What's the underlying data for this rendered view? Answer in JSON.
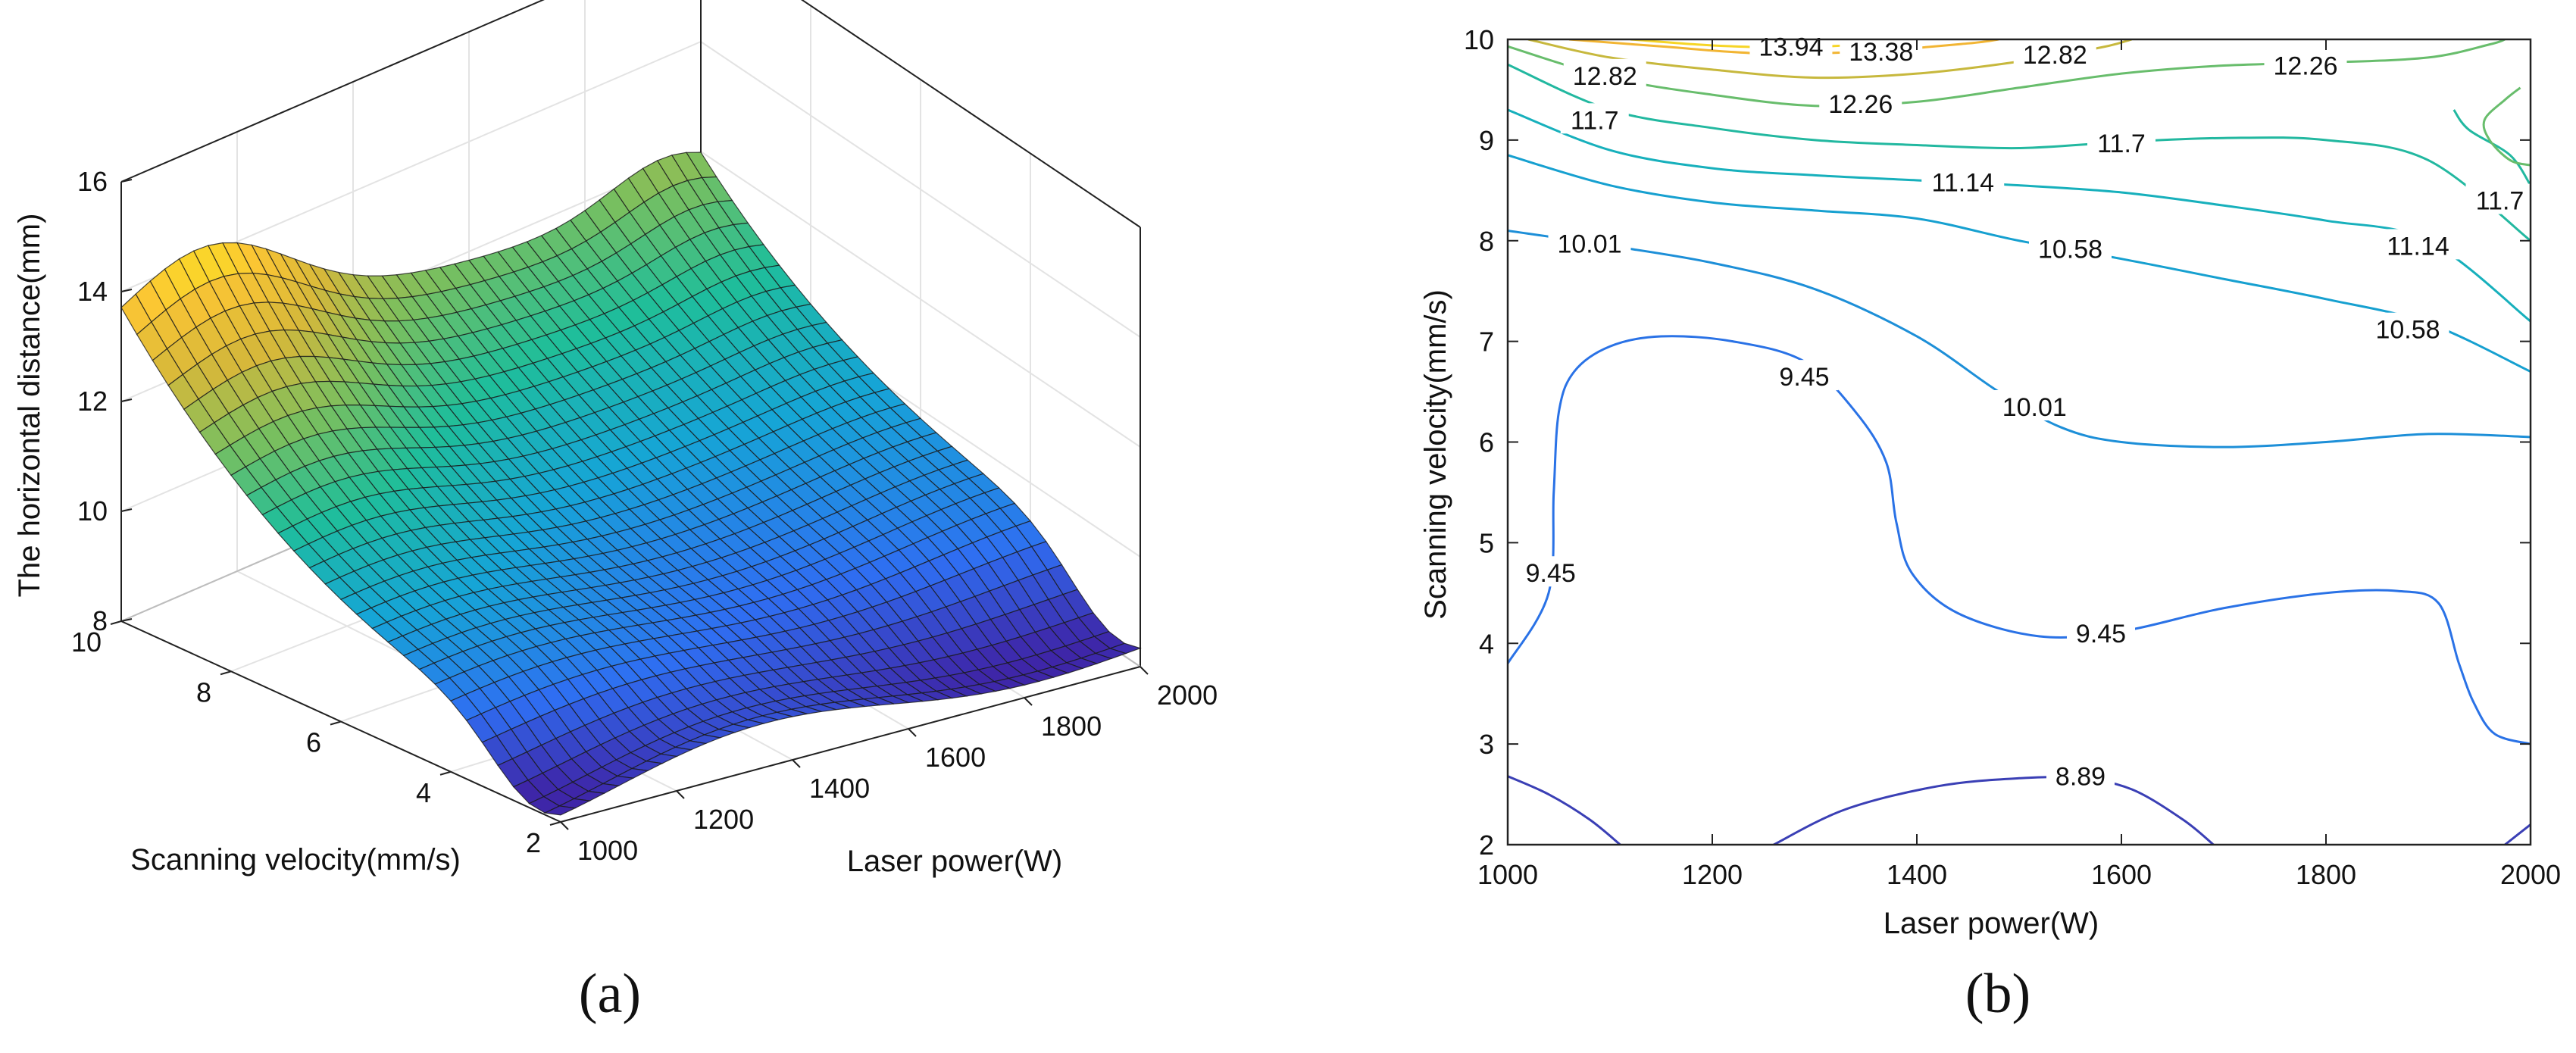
{
  "chart_data": [
    {
      "panel": "a",
      "type": "surface",
      "caption": "(a)",
      "zlabel": "The horizontal distance(mm)",
      "xlabel": "Laser power(W)",
      "ylabel": "Scanning velocity(mm/s)",
      "xlim": [
        1000,
        2000
      ],
      "ylim": [
        2,
        10
      ],
      "zlim": [
        8,
        16
      ],
      "xticks": [
        "1000",
        "1200",
        "1400",
        "1600",
        "1800",
        "2000"
      ],
      "yticks": [
        "2",
        "4",
        "6",
        "8",
        "10"
      ],
      "zticks": [
        "8",
        "10",
        "12",
        "14",
        "16"
      ],
      "colormap": [
        "#3e26a8",
        "#2f6ef2",
        "#16a5d6",
        "#1fbe9a",
        "#79bf5f",
        "#d6b83a",
        "#fbc534",
        "#f9fb15"
      ]
    },
    {
      "panel": "b",
      "type": "contour",
      "caption": "(b)",
      "xlabel": "Laser power(W)",
      "ylabel": "Scanning velocity(mm/s)",
      "xlim": [
        1000,
        2000
      ],
      "ylim": [
        2,
        10
      ],
      "xticks": [
        "1000",
        "1200",
        "1400",
        "1600",
        "1800",
        "2000"
      ],
      "yticks": [
        "2",
        "3",
        "4",
        "5",
        "6",
        "7",
        "8",
        "9",
        "10"
      ],
      "levels": [
        {
          "value": "8.89",
          "color": "#3a3fb5",
          "lines": [
            [
              [
                1000,
                2.68
              ],
              [
                1040,
                2.5
              ],
              [
                1080,
                2.25
              ],
              [
                1110,
                2.0
              ]
            ],
            [
              [
                1260,
                2.0
              ],
              [
                1330,
                2.35
              ],
              [
                1420,
                2.58
              ],
              [
                1500,
                2.66
              ],
              [
                1560,
                2.66
              ],
              [
                1610,
                2.55
              ],
              [
                1660,
                2.25
              ],
              [
                1690,
                2.0
              ]
            ],
            [
              [
                1975,
                2.0
              ],
              [
                2000,
                2.2
              ]
            ]
          ],
          "labels": [
            [
              1560,
              2.68
            ]
          ]
        },
        {
          "value": "9.45",
          "color": "#2a72e6",
          "lines": [
            [
              [
                1000,
                3.8
              ],
              [
                1040,
                4.5
              ],
              [
                1045,
                5.5
              ],
              [
                1050,
                6.3
              ],
              [
                1065,
                6.7
              ],
              [
                1100,
                6.95
              ],
              [
                1150,
                7.05
              ],
              [
                1220,
                7.0
              ],
              [
                1290,
                6.8
              ],
              [
                1340,
                6.3
              ],
              [
                1370,
                5.8
              ],
              [
                1380,
                5.2
              ],
              [
                1395,
                4.7
              ],
              [
                1440,
                4.3
              ],
              [
                1520,
                4.07
              ],
              [
                1600,
                4.12
              ],
              [
                1700,
                4.35
              ],
              [
                1800,
                4.5
              ],
              [
                1870,
                4.52
              ],
              [
                1910,
                4.4
              ],
              [
                1930,
                3.8
              ],
              [
                1945,
                3.4
              ],
              [
                1965,
                3.1
              ],
              [
                2000,
                3.0
              ]
            ]
          ],
          "labels": [
            [
              1042,
              4.7
            ],
            [
              1290,
              6.65
            ],
            [
              1580,
              4.1
            ]
          ]
        },
        {
          "value": "10.01",
          "color": "#1d8fd8",
          "lines": [
            [
              [
                1000,
                8.1
              ],
              [
                1100,
                7.95
              ],
              [
                1200,
                7.78
              ],
              [
                1300,
                7.52
              ],
              [
                1400,
                7.05
              ],
              [
                1480,
                6.5
              ],
              [
                1540,
                6.15
              ],
              [
                1600,
                6.0
              ],
              [
                1700,
                5.95
              ],
              [
                1800,
                6.0
              ],
              [
                1900,
                6.08
              ],
              [
                2000,
                6.05
              ]
            ]
          ],
          "labels": [
            [
              1080,
              7.97
            ],
            [
              1515,
              6.35
            ]
          ]
        },
        {
          "value": "10.58",
          "color": "#16a0d0",
          "lines": [
            [
              [
                1000,
                8.85
              ],
              [
                1100,
                8.55
              ],
              [
                1200,
                8.38
              ],
              [
                1300,
                8.3
              ],
              [
                1400,
                8.22
              ],
              [
                1500,
                8.0
              ],
              [
                1600,
                7.82
              ],
              [
                1700,
                7.62
              ],
              [
                1800,
                7.42
              ],
              [
                1900,
                7.18
              ],
              [
                2000,
                6.7
              ]
            ]
          ],
          "labels": [
            [
              1550,
              7.92
            ],
            [
              1880,
              7.12
            ]
          ]
        },
        {
          "value": "11.14",
          "color": "#17b0bc",
          "lines": [
            [
              [
                1000,
                9.3
              ],
              [
                1100,
                8.9
              ],
              [
                1200,
                8.72
              ],
              [
                1300,
                8.65
              ],
              [
                1400,
                8.6
              ],
              [
                1500,
                8.55
              ],
              [
                1600,
                8.48
              ],
              [
                1700,
                8.35
              ],
              [
                1800,
                8.2
              ],
              [
                1900,
                8.0
              ],
              [
                2000,
                7.2
              ]
            ]
          ],
          "labels": [
            [
              1445,
              8.58
            ],
            [
              1890,
              7.95
            ]
          ]
        },
        {
          "value": "11.7",
          "color": "#22b8a0",
          "lines": [
            [
              [
                1000,
                9.75
              ],
              [
                1100,
                9.3
              ],
              [
                1200,
                9.12
              ],
              [
                1300,
                9.0
              ],
              [
                1400,
                8.95
              ],
              [
                1500,
                8.92
              ],
              [
                1600,
                8.98
              ],
              [
                1700,
                9.02
              ],
              [
                1800,
                9.0
              ],
              [
                1900,
                8.8
              ],
              [
                2000,
                8.0
              ]
            ],
            [
              [
                1925,
                9.3
              ],
              [
                1940,
                9.1
              ],
              [
                1980,
                8.85
              ],
              [
                2000,
                8.55
              ]
            ]
          ],
          "labels": [
            [
              1085,
              9.2
            ],
            [
              1600,
              8.97
            ],
            [
              1970,
              8.4
            ]
          ]
        },
        {
          "value": "12.26",
          "color": "#68bd6c",
          "lines": [
            [
              [
                1000,
                9.93
              ],
              [
                1100,
                9.62
              ],
              [
                1200,
                9.45
              ],
              [
                1300,
                9.34
              ],
              [
                1400,
                9.38
              ],
              [
                1500,
                9.52
              ],
              [
                1600,
                9.66
              ],
              [
                1700,
                9.74
              ],
              [
                1800,
                9.77
              ],
              [
                1900,
                9.82
              ],
              [
                1960,
                9.95
              ],
              [
                1975,
                10.0
              ]
            ],
            [
              [
                1990,
                9.52
              ],
              [
                1975,
                9.4
              ],
              [
                1955,
                9.2
              ],
              [
                1960,
                9.0
              ],
              [
                1980,
                8.8
              ],
              [
                2000,
                8.75
              ]
            ]
          ],
          "labels": [
            [
              1345,
              9.36
            ],
            [
              1780,
              9.74
            ]
          ]
        },
        {
          "value": "12.82",
          "color": "#c7b83d",
          "lines": [
            [
              [
                1020,
                10.0
              ],
              [
                1100,
                9.82
              ],
              [
                1200,
                9.7
              ],
              [
                1300,
                9.62
              ],
              [
                1400,
                9.66
              ],
              [
                1500,
                9.78
              ],
              [
                1580,
                9.92
              ],
              [
                1610,
                10.0
              ]
            ]
          ],
          "labels": [
            [
              1095,
              9.64
            ],
            [
              1535,
              9.85
            ]
          ]
        },
        {
          "value": "13.38",
          "color": "#f2b533",
          "lines": [
            [
              [
                1060,
                10.0
              ],
              [
                1150,
                9.93
              ],
              [
                1250,
                9.86
              ],
              [
                1350,
                9.88
              ],
              [
                1450,
                9.96
              ],
              [
                1480,
                10.0
              ]
            ]
          ],
          "labels": [
            [
              1365,
              9.88
            ]
          ]
        },
        {
          "value": "13.94",
          "color": "#f6d526",
          "lines": [
            [
              [
                1120,
                10.0
              ],
              [
                1200,
                9.94
              ],
              [
                1280,
                9.92
              ],
              [
                1360,
                9.96
              ],
              [
                1390,
                10.0
              ]
            ]
          ],
          "labels": [
            [
              1277,
              9.93
            ]
          ]
        }
      ]
    }
  ]
}
